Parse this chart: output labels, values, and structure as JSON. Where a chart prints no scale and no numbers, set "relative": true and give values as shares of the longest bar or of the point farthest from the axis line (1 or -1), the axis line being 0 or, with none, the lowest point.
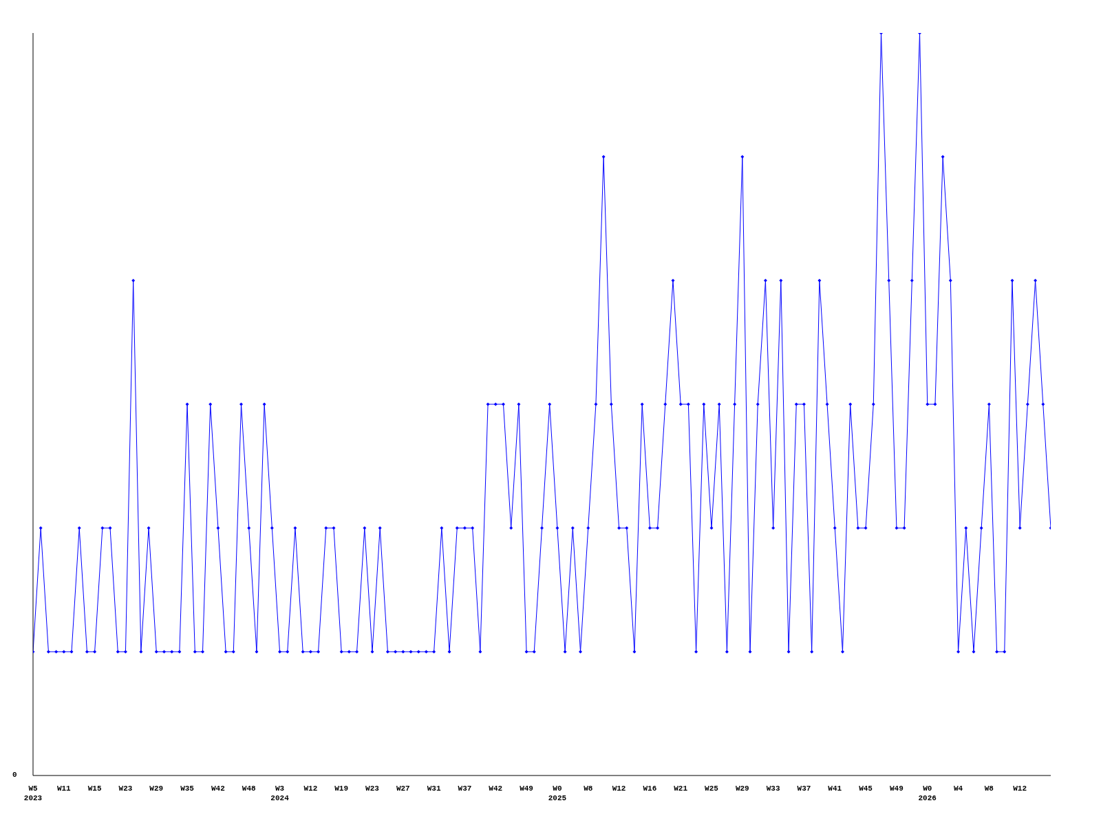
{
  "chart_data": {
    "type": "line",
    "relative": true,
    "annotations": [
      "0"
    ],
    "marker": "diamond",
    "line_style": "solid",
    "grid": false,
    "legend": false,
    "categories": [
      "W5\n2023",
      null,
      null,
      null,
      "W11",
      null,
      null,
      null,
      "W15",
      null,
      null,
      null,
      "W23",
      null,
      null,
      null,
      "W29",
      null,
      null,
      null,
      "W35",
      null,
      null,
      null,
      "W42",
      null,
      null,
      null,
      "W48",
      null,
      null,
      null,
      "W3\n2024",
      null,
      null,
      null,
      "W12",
      null,
      null,
      null,
      "W19",
      null,
      null,
      null,
      "W23",
      null,
      null,
      null,
      "W27",
      null,
      null,
      null,
      "W31",
      null,
      null,
      null,
      "W37",
      null,
      null,
      null,
      "W42",
      null,
      null,
      null,
      "W49",
      null,
      null,
      null,
      "W0\n2025",
      null,
      null,
      null,
      "W8",
      null,
      null,
      null,
      "W12",
      null,
      null,
      null,
      "W16",
      null,
      null,
      null,
      "W21",
      null,
      null,
      null,
      "W25",
      null,
      null,
      null,
      "W29",
      null,
      null,
      null,
      "W33",
      null,
      null,
      null,
      "W37",
      null,
      null,
      null,
      "W41",
      null,
      null,
      null,
      "W45",
      null,
      null,
      null,
      "W49",
      null,
      null,
      null,
      "W0\n2026",
      null,
      null,
      null,
      "W4",
      null,
      null,
      null,
      "W8",
      null,
      null,
      null,
      "W12",
      null,
      null,
      null,
      null
    ],
    "series": [
      {
        "color": "#0000ff",
        "values": [
          0.1667,
          0.3333,
          0.1667,
          0.1667,
          0.1667,
          0.1667,
          0.3333,
          0.1667,
          0.1667,
          0.3333,
          0.3333,
          0.1667,
          0.1667,
          0.6667,
          0.1667,
          0.3333,
          0.1667,
          0.1667,
          0.1667,
          0.1667,
          0.5,
          0.1667,
          0.1667,
          0.5,
          0.3333,
          0.1667,
          0.1667,
          0.5,
          0.3333,
          0.1667,
          0.5,
          0.3333,
          0.1667,
          0.1667,
          0.3333,
          0.1667,
          0.1667,
          0.1667,
          0.3333,
          0.3333,
          0.1667,
          0.1667,
          0.1667,
          0.3333,
          0.1667,
          0.3333,
          0.1667,
          0.1667,
          0.1667,
          0.1667,
          0.1667,
          0.1667,
          0.1667,
          0.3333,
          0.1667,
          0.3333,
          0.3333,
          0.3333,
          0.1667,
          0.5,
          0.5,
          0.5,
          0.3333,
          0.5,
          0.1667,
          0.1667,
          0.3333,
          0.5,
          0.3333,
          0.1667,
          0.3333,
          0.1667,
          0.3333,
          0.5,
          0.8333,
          0.5,
          0.3333,
          0.3333,
          0.1667,
          0.5,
          0.3333,
          0.3333,
          0.5,
          0.6667,
          0.5,
          0.5,
          0.1667,
          0.5,
          0.3333,
          0.5,
          0.1667,
          0.5,
          0.8333,
          0.1667,
          0.5,
          0.6667,
          0.3333,
          0.6667,
          0.1667,
          0.5,
          0.5,
          0.1667,
          0.6667,
          0.5,
          0.3333,
          0.1667,
          0.5,
          0.3333,
          0.3333,
          0.5,
          1,
          0.6667,
          0.3333,
          0.3333,
          0.6667,
          1,
          0.5,
          0.5,
          0.8333,
          0.6667,
          0.1667,
          0.3333,
          0.1667,
          0.3333,
          0.5,
          0.1667,
          0.1667,
          0.6667,
          0.3333,
          0.5,
          0.6667,
          0.5,
          0.3333
        ]
      }
    ]
  }
}
